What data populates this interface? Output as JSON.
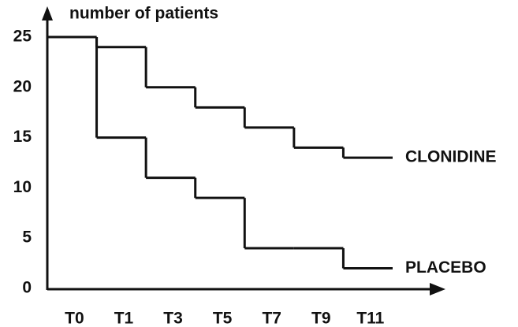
{
  "chart_data": {
    "type": "step",
    "y_axis_label": "number of patients",
    "categories": [
      "T0",
      "T1",
      "T3",
      "T5",
      "T7",
      "T9",
      "T11"
    ],
    "series": [
      {
        "name": "CLONIDINE",
        "color": "#111111",
        "values": [
          25,
          24,
          20,
          18,
          16,
          14,
          13
        ]
      },
      {
        "name": "PLACEBO",
        "color": "#111111",
        "values": [
          25,
          15,
          11,
          9,
          4,
          4,
          2
        ]
      }
    ],
    "ylim": [
      0,
      25
    ],
    "yticks": [
      0,
      5,
      10,
      15,
      20,
      25
    ],
    "grid": false
  }
}
